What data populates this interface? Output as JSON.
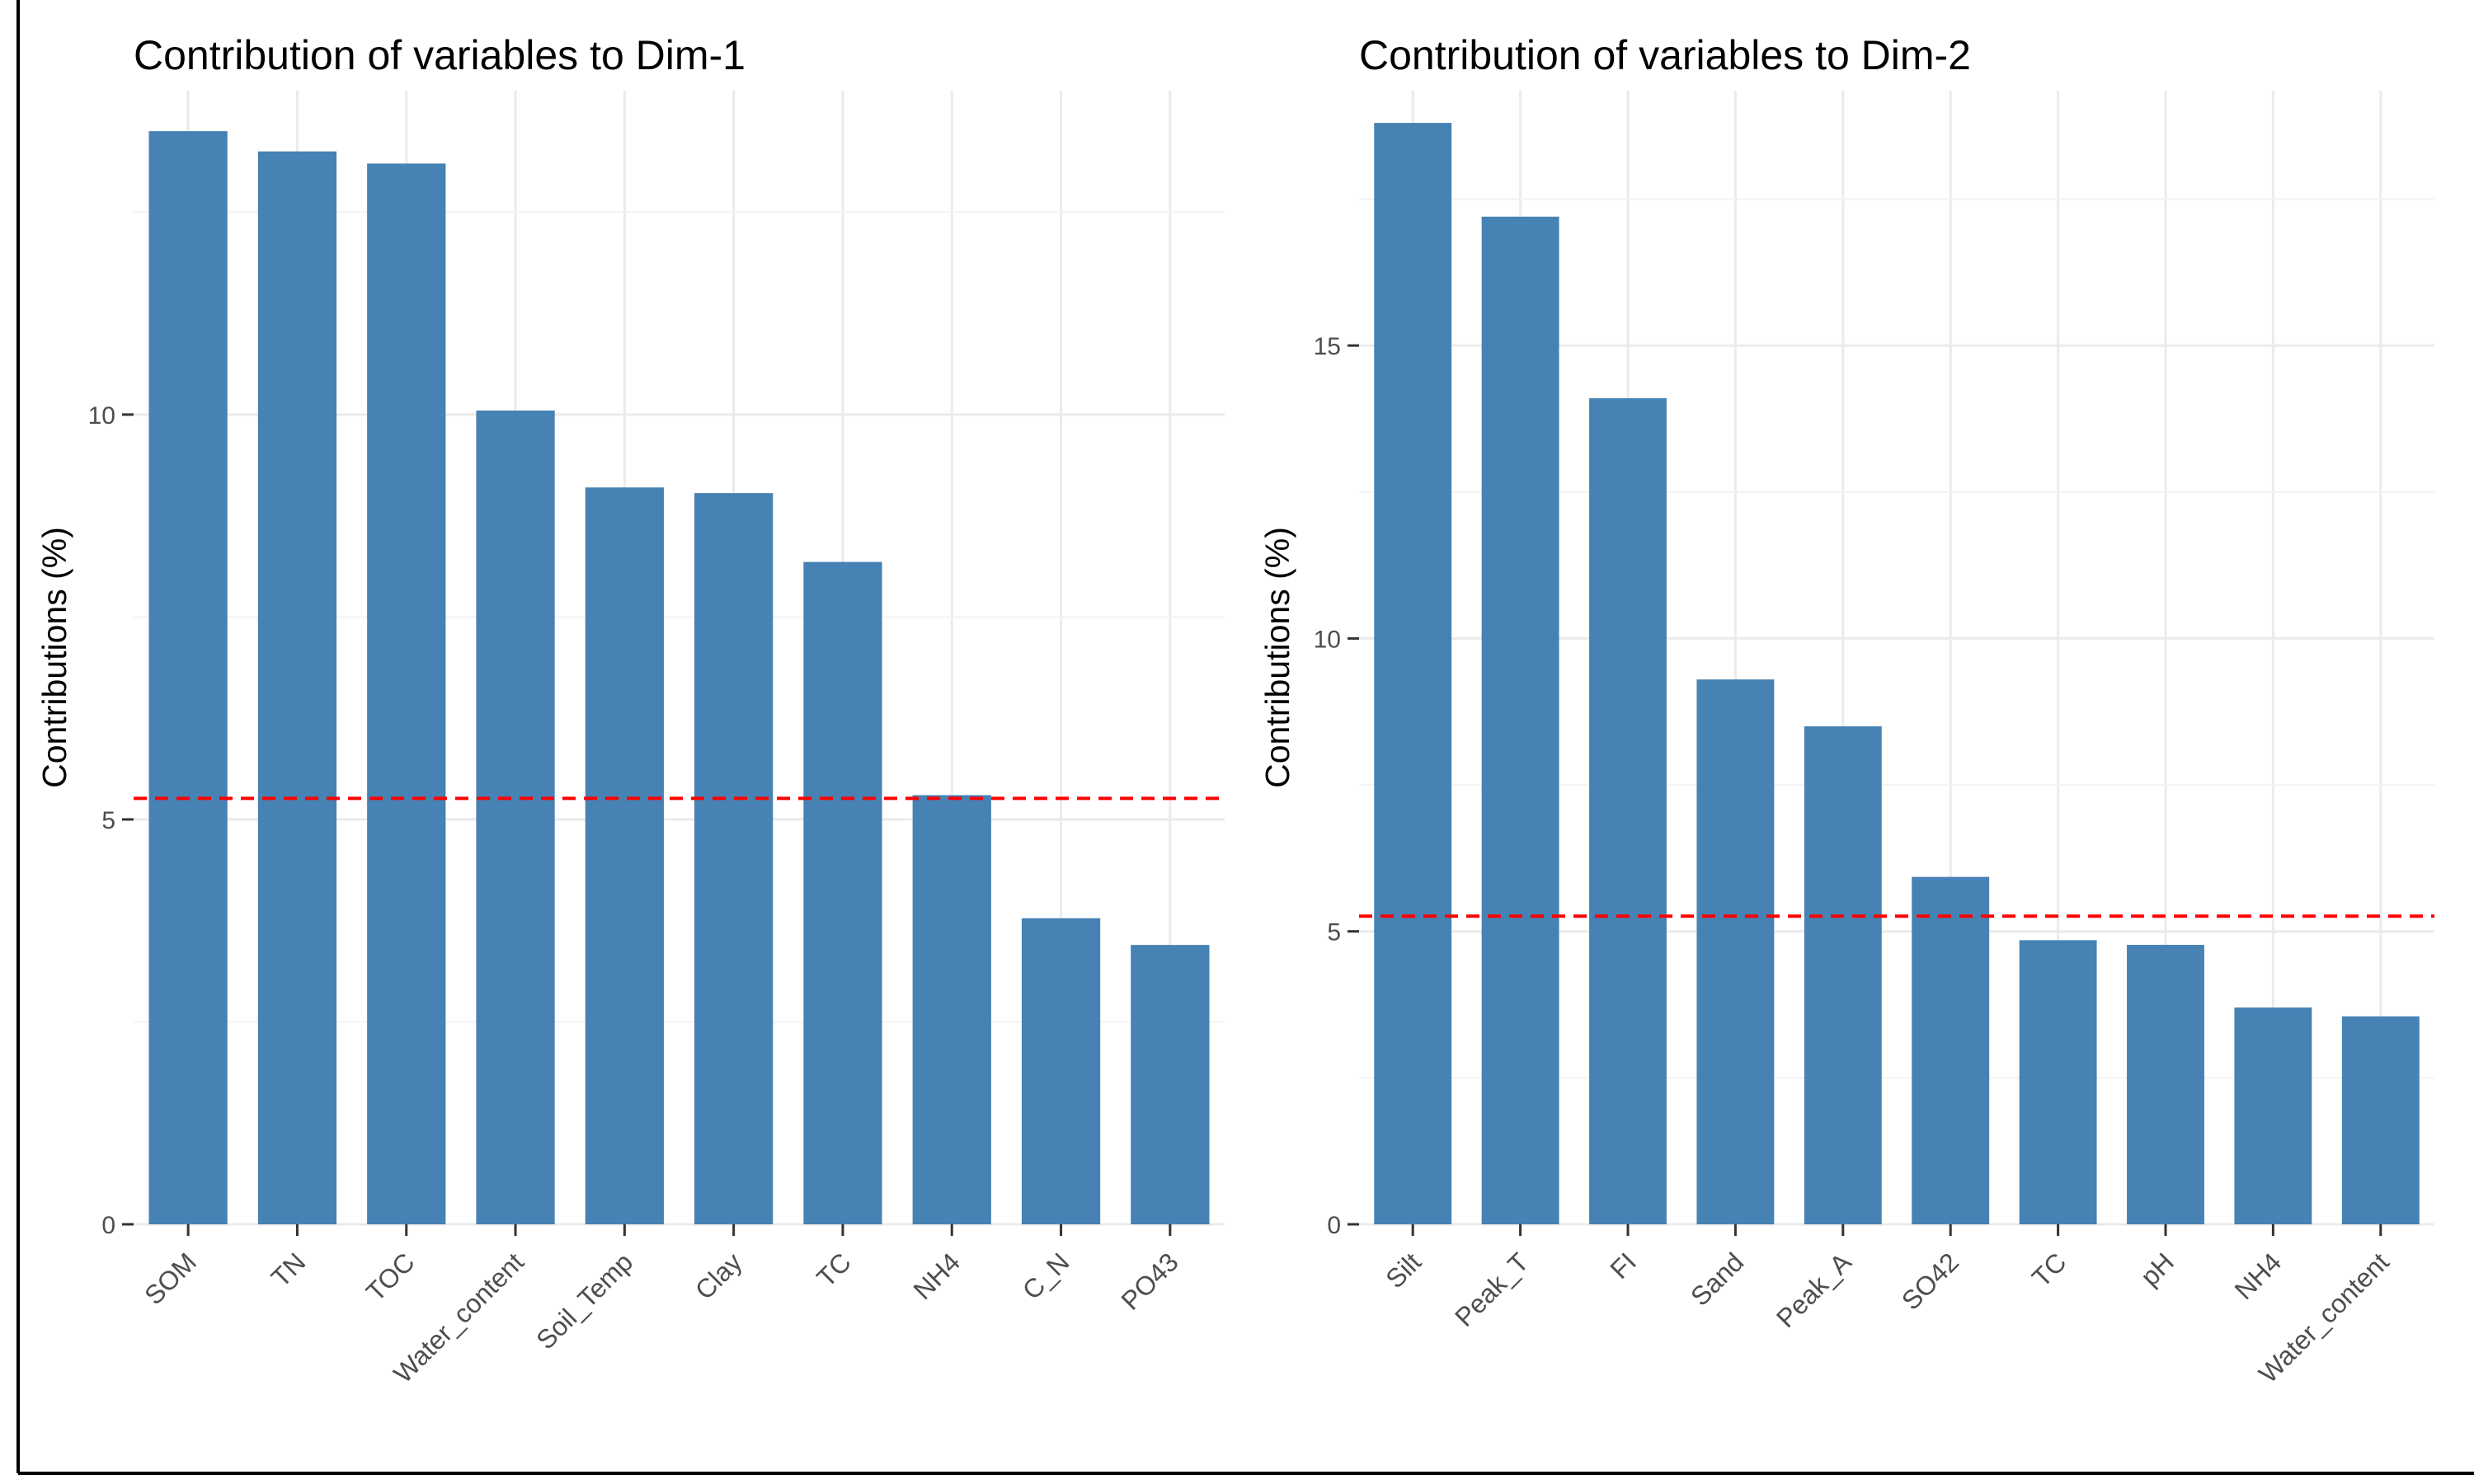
{
  "chart_data": [
    {
      "type": "bar",
      "title": "Contribution of variables to Dim-1",
      "xlabel": "",
      "ylabel": "Contributions (%)",
      "categories": [
        "SOM",
        "TN",
        "TOC",
        "Water_content",
        "Soil_Temp",
        "Clay",
        "TC",
        "NH4",
        "C_N",
        "PO43"
      ],
      "values": [
        13.5,
        13.25,
        13.1,
        10.05,
        9.1,
        9.03,
        8.18,
        5.3,
        3.78,
        3.45
      ],
      "reference_line": 5.26,
      "y_ticks": [
        0,
        5,
        10
      ],
      "ylim": [
        0,
        14.0
      ],
      "grid": true,
      "bar_color": "#4682B4",
      "reference_line_color": "#FF0000"
    },
    {
      "type": "bar",
      "title": "Contribution of variables to Dim-2",
      "xlabel": "",
      "ylabel": "Contributions (%)",
      "categories": [
        "Silt",
        "Peak_T",
        "FI",
        "Sand",
        "Peak_A",
        "SO42",
        "TC",
        "pH",
        "NH4",
        "Water_content"
      ],
      "values": [
        18.8,
        17.2,
        14.1,
        9.3,
        8.5,
        5.93,
        4.85,
        4.77,
        3.7,
        3.55
      ],
      "reference_line": 5.26,
      "y_ticks": [
        0,
        5,
        10,
        15
      ],
      "ylim": [
        0,
        19.35
      ],
      "grid": true,
      "bar_color": "#4682B4",
      "reference_line_color": "#FF0000"
    }
  ]
}
